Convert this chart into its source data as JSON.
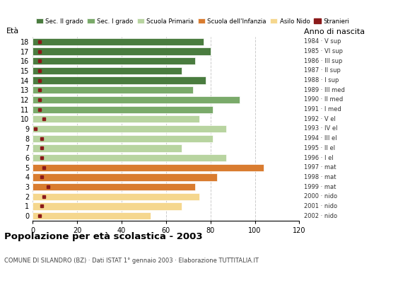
{
  "title": "Popolazione per età scolastica - 2003",
  "subtitle": "COMUNE DI SILANDRO (BZ) · Dati ISTAT 1° gennaio 2003 · Elaborazione TUTTITALIA.IT",
  "label_left": "Età",
  "label_right": "Anno di nascita",
  "xlim": [
    0,
    120
  ],
  "xticks": [
    0,
    20,
    40,
    60,
    80,
    100,
    120
  ],
  "ages": [
    18,
    17,
    16,
    15,
    14,
    13,
    12,
    11,
    10,
    9,
    8,
    7,
    6,
    5,
    4,
    3,
    2,
    1,
    0
  ],
  "years": [
    "1984 · V sup",
    "1985 · VI sup",
    "1986 · III sup",
    "1987 · II sup",
    "1988 · I sup",
    "1989 · III med",
    "1990 · II med",
    "1991 · I med",
    "1992 · V el",
    "1993 · IV el",
    "1994 · III el",
    "1995 · II el",
    "1996 · I el",
    "1997 · mat",
    "1998 · mat",
    "1999 · mat",
    "2000 · nido",
    "2001 · nido",
    "2002 · nido"
  ],
  "bar_values": [
    77,
    80,
    73,
    67,
    78,
    72,
    93,
    81,
    75,
    87,
    81,
    67,
    87,
    104,
    83,
    73,
    75,
    67,
    53
  ],
  "stranieri": [
    3,
    3,
    3,
    3,
    3,
    3,
    3,
    3,
    5,
    1,
    4,
    4,
    4,
    5,
    4,
    7,
    5,
    4,
    3
  ],
  "bar_colors": [
    "#4a7c3f",
    "#4a7c3f",
    "#4a7c3f",
    "#4a7c3f",
    "#4a7c3f",
    "#7aaa6a",
    "#7aaa6a",
    "#7aaa6a",
    "#b8d4a0",
    "#b8d4a0",
    "#b8d4a0",
    "#b8d4a0",
    "#b8d4a0",
    "#d97c30",
    "#d97c30",
    "#d97c30",
    "#f5d78e",
    "#f5d78e",
    "#f5d78e"
  ],
  "stranieri_color": "#8b1a1a",
  "legend_labels": [
    "Sec. II grado",
    "Sec. I grado",
    "Scuola Primaria",
    "Scuola dell'Infanzia",
    "Asilo Nido",
    "Stranieri"
  ],
  "legend_colors": [
    "#4a7c3f",
    "#7aaa6a",
    "#b8d4a0",
    "#d97c30",
    "#f5d78e",
    "#8b1a1a"
  ],
  "bg_color": "#ffffff",
  "grid_color": "#cccccc",
  "bar_height": 0.75
}
